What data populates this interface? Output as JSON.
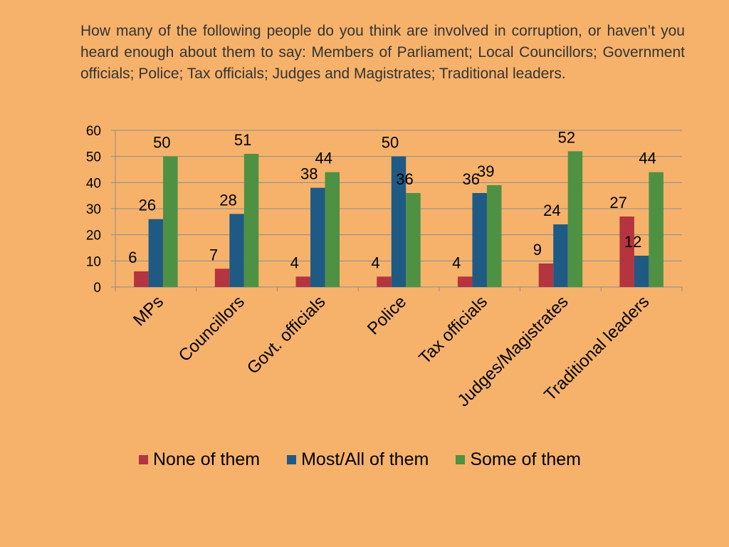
{
  "question": "How many of the following people do you think are involved in corruption, or haven’t you heard enough about them to say: Members of Parliament; Local Councillors; Government officials; Police; Tax officials; Judges and Magistrates; Traditional leaders.",
  "chart_data": {
    "type": "bar",
    "title": "",
    "xlabel": "",
    "ylabel": "",
    "ylim": [
      0,
      60
    ],
    "yticks": [
      0,
      10,
      20,
      30,
      40,
      50,
      60
    ],
    "grid": true,
    "legend_position": "bottom",
    "categories": [
      "MPs",
      "Councillors",
      "Govt. officials",
      "Police",
      "Tax officials",
      "Judges/Magistrates",
      "Traditional leaders"
    ],
    "series": [
      {
        "name": "None of them",
        "color": "#B4343F",
        "values": [
          6,
          7,
          4,
          4,
          4,
          9,
          27
        ]
      },
      {
        "name": "Most/All of them",
        "color": "#1F5A84",
        "values": [
          26,
          28,
          38,
          50,
          36,
          24,
          12
        ]
      },
      {
        "name": "Some of them",
        "color": "#4E9142",
        "values": [
          50,
          51,
          44,
          36,
          39,
          52,
          44
        ]
      }
    ]
  }
}
